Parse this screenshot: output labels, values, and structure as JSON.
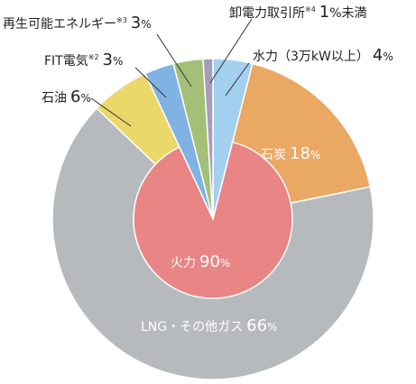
{
  "chart_data": {
    "type": "pie",
    "outer": {
      "slices": [
        {
          "label": "水力（3万kW以上）",
          "value": 4,
          "color": "#a3d0ef"
        },
        {
          "label": "石炭",
          "value": 18,
          "color": "#eaa865"
        },
        {
          "label": "LNG・その他ガス",
          "value": 66,
          "color": "#b6babd"
        },
        {
          "label": "石油",
          "value": 6,
          "color": "#ecd86a"
        },
        {
          "label": "FIT電気",
          "value": 3,
          "color": "#7fb3e3"
        },
        {
          "label": "再生可能エネルギー",
          "value": 3,
          "color": "#a4c078"
        },
        {
          "label": "卸電力取引所",
          "value": 1,
          "color": "#a49fb8"
        }
      ]
    },
    "inner": {
      "label": "火力",
      "value": 90,
      "color": "#e98584"
    }
  },
  "labels": {
    "hydro": {
      "name": "水力（3万kW以上）",
      "num": "4",
      "pct": "%"
    },
    "coal": {
      "name": "石炭",
      "num": "18",
      "pct": "%"
    },
    "lng": {
      "name": "LNG・その他ガス",
      "num": "66",
      "pct": "%"
    },
    "oil": {
      "name": "石油",
      "num": "6",
      "pct": "%"
    },
    "fit": {
      "name": "FIT電気",
      "sup": "※2",
      "num": "3",
      "pct": "%"
    },
    "renew": {
      "name": "再生可能エネルギー",
      "sup": "※3",
      "num": "3",
      "pct": "%"
    },
    "exchange": {
      "name": "卸電力取引所",
      "sup": "※4",
      "num": "1",
      "pct": "%未満"
    },
    "thermal": {
      "name": "火力",
      "num": "90",
      "pct": "%"
    }
  }
}
